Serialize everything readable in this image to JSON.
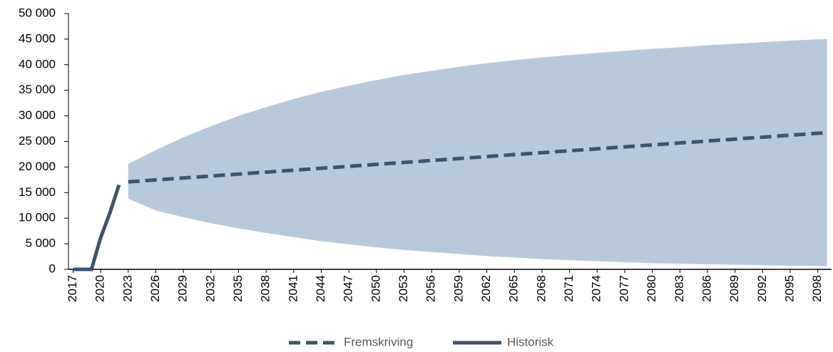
{
  "chart_data": {
    "type": "line",
    "xlim": [
      2016.5,
      2099.5
    ],
    "ylim": [
      0,
      50000
    ],
    "xticks": [
      2017,
      2020,
      2023,
      2026,
      2029,
      2032,
      2035,
      2038,
      2041,
      2044,
      2047,
      2050,
      2053,
      2056,
      2059,
      2062,
      2065,
      2068,
      2071,
      2074,
      2077,
      2080,
      2083,
      2086,
      2089,
      2092,
      2095,
      2098
    ],
    "yticks": [
      0,
      {
        "value": 5000,
        "label": "5 000"
      },
      {
        "value": 10000,
        "label": "10 000"
      },
      {
        "value": 15000,
        "label": "15 000"
      },
      {
        "value": 20000,
        "label": "20 000"
      },
      {
        "value": 25000,
        "label": "25 000"
      },
      {
        "value": 30000,
        "label": "30 000"
      },
      {
        "value": 35000,
        "label": "35 000"
      },
      {
        "value": 40000,
        "label": "40 000"
      },
      {
        "value": 45000,
        "label": "45 000"
      },
      {
        "value": 50000,
        "label": "50 000"
      }
    ],
    "band": {
      "color": "#b9c9dc",
      "upper": [
        20600,
        23300,
        25800,
        28000,
        30000,
        31700,
        33300,
        34700,
        35900,
        37000,
        38000,
        38800,
        39600,
        40300,
        40900,
        41400,
        41900,
        42300,
        42700,
        43100,
        43400,
        43800,
        44100,
        44400,
        44700,
        44950,
        45000
      ],
      "lower": [
        13800,
        11500,
        10200,
        9000,
        8000,
        7100,
        6300,
        5500,
        4900,
        4300,
        3800,
        3400,
        3000,
        2600,
        2300,
        2000,
        1800,
        1600,
        1400,
        1200,
        1100,
        1000,
        900,
        800,
        700,
        650,
        600
      ]
    },
    "series": [
      {
        "name": "Fremskriving",
        "color": "#3d5373",
        "line_style": "dashed",
        "x": [
          2023,
          2026,
          2029,
          2032,
          2035,
          2038,
          2041,
          2044,
          2047,
          2050,
          2053,
          2056,
          2059,
          2062,
          2065,
          2068,
          2071,
          2074,
          2077,
          2080,
          2083,
          2086,
          2089,
          2092,
          2095,
          2098,
          2099
        ],
        "values": [
          17100,
          17480,
          17860,
          18240,
          18620,
          19000,
          19380,
          19760,
          20140,
          20520,
          20900,
          21280,
          21660,
          22040,
          22420,
          22800,
          23180,
          23560,
          23940,
          24320,
          24700,
          25080,
          25460,
          25840,
          26220,
          26600,
          26700
        ]
      },
      {
        "name": "Historisk",
        "color": "#3d5373",
        "line_style": "solid",
        "x": [
          2017,
          2018,
          2019,
          2020,
          2021,
          2022
        ],
        "values": [
          0,
          0,
          0,
          6200,
          11000,
          16500
        ]
      }
    ]
  }
}
